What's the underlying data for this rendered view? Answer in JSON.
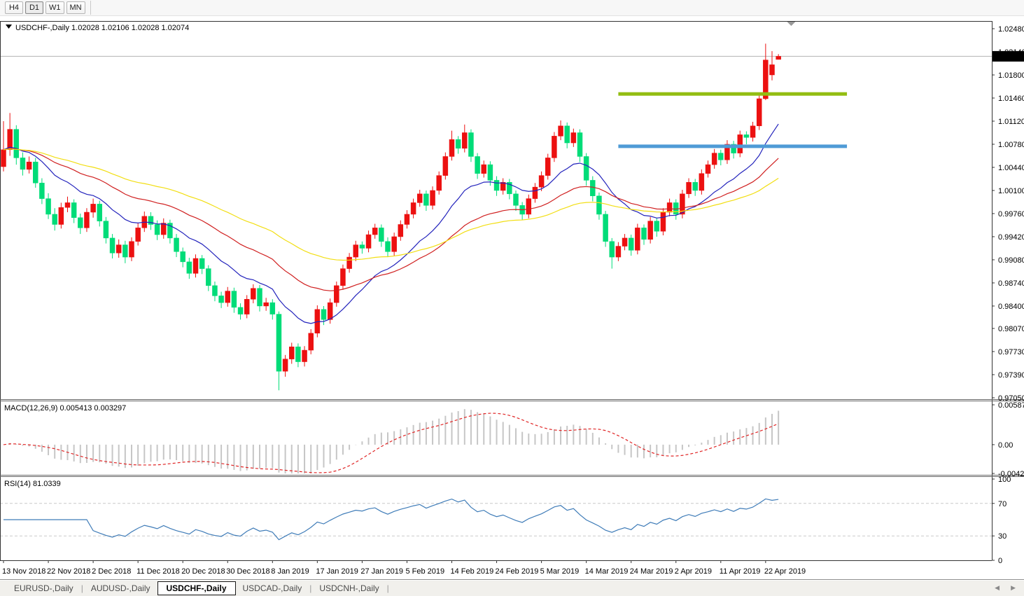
{
  "toolbar": {
    "timeframes": [
      {
        "label": "H4",
        "active": false
      },
      {
        "label": "D1",
        "active": true
      },
      {
        "label": "W1",
        "active": false
      },
      {
        "label": "MN",
        "active": false
      }
    ]
  },
  "bottom_tabs": {
    "tabs": [
      {
        "label": "EURUSD-,Daily",
        "active": false
      },
      {
        "label": "AUDUSD-,Daily",
        "active": false
      },
      {
        "label": "USDCHF-,Daily",
        "active": true
      },
      {
        "label": "USDCAD-,Daily",
        "active": false
      },
      {
        "label": "USDCNH-,Daily",
        "active": false
      }
    ],
    "scroll_left_icon": "◀",
    "scroll_right_icon": "▶"
  },
  "chart_data": {
    "type": "candlestick",
    "symbol": "USDCHF-,Daily",
    "title_values": "1.02028 1.02106 1.02028 1.02074",
    "title_ohlc": {
      "open": "1.02028",
      "high": "1.02106",
      "low": "1.02028",
      "close": "1.02074"
    },
    "x_axis": {
      "tick_bar_indices": [
        0,
        7,
        14,
        21,
        28,
        35,
        42,
        49,
        56,
        63,
        70,
        77,
        84,
        91,
        98,
        105,
        112,
        119
      ],
      "tick_labels": [
        "13 Nov 2018",
        "22 Nov 2018",
        "2 Dec 2018",
        "11 Dec 2018",
        "20 Dec 2018",
        "30 Dec 2018",
        "8 Jan 2019",
        "17 Jan 2019",
        "27 Jan 2019",
        "5 Feb 2019",
        "14 Feb 2019",
        "24 Feb 2019",
        "5 Mar 2019",
        "14 Mar 2019",
        "24 Mar 2019",
        "2 Apr 2019",
        "11 Apr 2019",
        "22 Apr 2019"
      ]
    },
    "price_axis": {
      "ylim": [
        0.97029,
        1.02583
      ],
      "tick_labels": [
        "1.02480",
        "1.02140",
        "1.01800",
        "1.01460",
        "1.01120",
        "1.00780",
        "1.00440",
        "1.00100",
        "0.99760",
        "0.99420",
        "0.99080",
        "0.98740",
        "0.98400",
        "0.98070",
        "0.97730",
        "0.97390",
        "0.97050"
      ],
      "current_price_label": "1.02074",
      "current_price": 1.02074
    },
    "colors": {
      "bull": "#ec1010",
      "bear": "#00dc78",
      "bid_line": "#b3b3b3",
      "bid_tag_bg": "#000000",
      "bid_tag_text": "#ffffff",
      "border": "#333333",
      "splitter": "#666666",
      "shift_marker": "#999999"
    },
    "moving_averages": [
      {
        "name": "ma-fast-blue",
        "type": "ema",
        "period": 15,
        "color": "#2323bc"
      },
      {
        "name": "ma-mid-red",
        "type": "ema",
        "period": 34,
        "color": "#d02020"
      },
      {
        "name": "ma-slow-yellow",
        "type": "ema",
        "period": 60,
        "color": "#f2de12"
      }
    ],
    "hlines": [
      {
        "name": "resistance-line-upper",
        "color": "#93bd12",
        "price": 1.0152,
        "x1_bar": 96,
        "x2_bar": 131.7,
        "width": 5
      },
      {
        "name": "resistance-line-lower",
        "color": "#4f9bd6",
        "price": 1.0075,
        "x1_bar": 96,
        "x2_bar": 131.7,
        "width": 5
      }
    ],
    "shift_marker_bar": 123,
    "candles": [
      [
        1.0045,
        1.0112,
        1.0038,
        1.007
      ],
      [
        1.007,
        1.0124,
        1.0061,
        1.01
      ],
      [
        1.01,
        1.0106,
        1.0048,
        1.0058
      ],
      [
        1.0058,
        1.0066,
        1.0032,
        1.0041
      ],
      [
        1.0041,
        1.006,
        1.0035,
        1.0052
      ],
      [
        1.0052,
        1.0058,
        1.0014,
        1.0021
      ],
      [
        1.0021,
        1.0028,
        0.999,
        0.9998
      ],
      [
        0.9998,
        1.0006,
        0.9968,
        0.9975
      ],
      [
        0.9975,
        0.9984,
        0.9951,
        0.996
      ],
      [
        0.996,
        0.9992,
        0.9954,
        0.9985
      ],
      [
        0.9985,
        1.0001,
        0.9978,
        0.9992
      ],
      [
        0.9992,
        0.9997,
        0.9962,
        0.997
      ],
      [
        0.997,
        0.9976,
        0.9946,
        0.9955
      ],
      [
        0.9955,
        0.9984,
        0.9949,
        0.9978
      ],
      [
        0.9978,
        0.9998,
        0.997,
        0.999
      ],
      [
        0.999,
        0.9995,
        0.9957,
        0.9965
      ],
      [
        0.9965,
        0.9971,
        0.9932,
        0.994
      ],
      [
        0.994,
        0.9946,
        0.991,
        0.9918
      ],
      [
        0.9918,
        0.9938,
        0.9911,
        0.993
      ],
      [
        0.993,
        0.9936,
        0.9903,
        0.9912
      ],
      [
        0.9912,
        0.9941,
        0.9906,
        0.9935
      ],
      [
        0.9935,
        0.9962,
        0.9929,
        0.9955
      ],
      [
        0.9955,
        0.9979,
        0.9949,
        0.9972
      ],
      [
        0.9972,
        0.9978,
        0.9952,
        0.996
      ],
      [
        0.996,
        0.9966,
        0.9937,
        0.9945
      ],
      [
        0.9945,
        0.9969,
        0.9939,
        0.9962
      ],
      [
        0.9962,
        0.9967,
        0.9932,
        0.994
      ],
      [
        0.994,
        0.9946,
        0.9912,
        0.992
      ],
      [
        0.992,
        0.9926,
        0.9897,
        0.9905
      ],
      [
        0.9905,
        0.9911,
        0.988,
        0.9888
      ],
      [
        0.9888,
        0.9916,
        0.9882,
        0.991
      ],
      [
        0.991,
        0.9915,
        0.9887,
        0.9895
      ],
      [
        0.9895,
        0.99,
        0.9862,
        0.987
      ],
      [
        0.987,
        0.9876,
        0.9847,
        0.9855
      ],
      [
        0.9855,
        0.9861,
        0.9837,
        0.9845
      ],
      [
        0.9845,
        0.9868,
        0.9839,
        0.9862
      ],
      [
        0.9862,
        0.9867,
        0.983,
        0.9838
      ],
      [
        0.9838,
        0.9844,
        0.982,
        0.9828
      ],
      [
        0.9828,
        0.9856,
        0.9822,
        0.985
      ],
      [
        0.985,
        0.9872,
        0.9844,
        0.9866
      ],
      [
        0.9866,
        0.9871,
        0.9832,
        0.984
      ],
      [
        0.984,
        0.9852,
        0.9833,
        0.9845
      ],
      [
        0.9845,
        0.985,
        0.982,
        0.9828
      ],
      [
        0.9828,
        0.9832,
        0.9716,
        0.9744
      ],
      [
        0.9744,
        0.9768,
        0.9736,
        0.9762
      ],
      [
        0.9762,
        0.9786,
        0.9755,
        0.978
      ],
      [
        0.978,
        0.9785,
        0.975,
        0.9758
      ],
      [
        0.9758,
        0.9781,
        0.9751,
        0.9775
      ],
      [
        0.9775,
        0.9806,
        0.9769,
        0.98
      ],
      [
        0.98,
        0.9841,
        0.9794,
        0.9835
      ],
      [
        0.9835,
        0.984,
        0.9812,
        0.982
      ],
      [
        0.982,
        0.9851,
        0.9814,
        0.9845
      ],
      [
        0.9845,
        0.9876,
        0.9839,
        0.987
      ],
      [
        0.987,
        0.9901,
        0.9864,
        0.9895
      ],
      [
        0.9895,
        0.9918,
        0.9889,
        0.9912
      ],
      [
        0.9912,
        0.9936,
        0.9906,
        0.993
      ],
      [
        0.993,
        0.9935,
        0.9917,
        0.9925
      ],
      [
        0.9925,
        0.9951,
        0.9919,
        0.9945
      ],
      [
        0.9945,
        0.9961,
        0.9939,
        0.9955
      ],
      [
        0.9955,
        0.996,
        0.9927,
        0.9935
      ],
      [
        0.9935,
        0.9941,
        0.9912,
        0.992
      ],
      [
        0.992,
        0.9948,
        0.9914,
        0.9942
      ],
      [
        0.9942,
        0.9966,
        0.9936,
        0.996
      ],
      [
        0.996,
        0.9981,
        0.9954,
        0.9975
      ],
      [
        0.9975,
        0.9998,
        0.9969,
        0.9992
      ],
      [
        0.9992,
        1.0011,
        0.9986,
        1.0005
      ],
      [
        1.0005,
        1.001,
        0.998,
        0.9988
      ],
      [
        0.9988,
        1.0016,
        0.9982,
        1.001
      ],
      [
        1.001,
        1.0038,
        1.0004,
        1.0032
      ],
      [
        1.0032,
        1.0066,
        1.0026,
        1.006
      ],
      [
        1.006,
        1.0098,
        1.0054,
        1.0085
      ],
      [
        1.0085,
        1.009,
        1.0064,
        1.0072
      ],
      [
        1.0072,
        1.0107,
        1.0066,
        1.0095
      ],
      [
        1.0095,
        1.01,
        1.0052,
        1.006
      ],
      [
        1.006,
        1.0065,
        1.0027,
        1.0035
      ],
      [
        1.0035,
        1.0054,
        1.0029,
        1.0048
      ],
      [
        1.0048,
        1.0053,
        1.0017,
        1.0025
      ],
      [
        1.0025,
        1.0031,
        1.0002,
        1.001
      ],
      [
        1.001,
        1.0028,
        1.0004,
        1.0022
      ],
      [
        1.0022,
        1.0027,
        0.9997,
        1.0005
      ],
      [
        1.0005,
        1.001,
        0.998,
        0.9988
      ],
      [
        0.9988,
        0.9993,
        0.9967,
        0.9975
      ],
      [
        0.9975,
        1.0004,
        0.9969,
        0.9998
      ],
      [
        0.9998,
        1.0021,
        0.9992,
        1.0015
      ],
      [
        1.0015,
        1.0038,
        1.0009,
        1.0032
      ],
      [
        1.0032,
        1.0064,
        1.0026,
        1.0058
      ],
      [
        1.0058,
        1.0096,
        1.0052,
        1.009
      ],
      [
        1.009,
        1.0113,
        1.0084,
        1.0105
      ],
      [
        1.0105,
        1.011,
        1.0072,
        1.008
      ],
      [
        1.008,
        1.0101,
        1.0074,
        1.0095
      ],
      [
        1.0095,
        1.01,
        1.0052,
        1.006
      ],
      [
        1.006,
        1.0065,
        1.0017,
        1.0025
      ],
      [
        1.0025,
        1.0031,
        0.9994,
        1.0002
      ],
      [
        1.0002,
        1.0007,
        0.9967,
        0.9975
      ],
      [
        0.9975,
        0.998,
        0.9927,
        0.9935
      ],
      [
        0.9935,
        0.994,
        0.9895,
        0.9912
      ],
      [
        0.9912,
        0.9934,
        0.9906,
        0.9928
      ],
      [
        0.9928,
        0.9946,
        0.9922,
        0.994
      ],
      [
        0.994,
        0.9945,
        0.9914,
        0.9922
      ],
      [
        0.9922,
        0.9961,
        0.9916,
        0.9955
      ],
      [
        0.9955,
        0.996,
        0.993,
        0.9938
      ],
      [
        0.9938,
        0.9971,
        0.9932,
        0.9965
      ],
      [
        0.9965,
        0.997,
        0.9942,
        0.995
      ],
      [
        0.995,
        0.9984,
        0.9944,
        0.9978
      ],
      [
        0.9978,
        0.9998,
        0.9972,
        0.9992
      ],
      [
        0.9992,
        0.9997,
        0.9967,
        0.9975
      ],
      [
        0.9975,
        1.0011,
        0.9969,
        1.0005
      ],
      [
        1.0005,
        1.0028,
        0.9999,
        1.0022
      ],
      [
        1.0022,
        1.0027,
        1.0002,
        1.001
      ],
      [
        1.001,
        1.0041,
        1.0004,
        1.0035
      ],
      [
        1.0035,
        1.0054,
        1.0029,
        1.0048
      ],
      [
        1.0048,
        1.0071,
        1.0042,
        1.0065
      ],
      [
        1.0065,
        1.007,
        1.0047,
        1.0055
      ],
      [
        1.0055,
        1.0084,
        1.0049,
        1.0078
      ],
      [
        1.0078,
        1.0083,
        1.0057,
        1.0065
      ],
      [
        1.0065,
        1.0098,
        1.0059,
        1.0092
      ],
      [
        1.0092,
        1.0097,
        1.0078,
        1.0088
      ],
      [
        1.0088,
        1.0111,
        1.0082,
        1.0105
      ],
      [
        1.0105,
        1.0151,
        1.0099,
        1.0145
      ],
      [
        1.0145,
        1.0226,
        1.0143,
        1.0202
      ],
      [
        1.018,
        1.0215,
        1.0172,
        1.0195
      ],
      [
        1.02028,
        1.02106,
        1.02028,
        1.02074
      ]
    ],
    "macd": {
      "label": "MACD(12,26,9)",
      "value_main": "0.005413",
      "value_signal": "0.003297",
      "fast": 12,
      "slow": 26,
      "signal": 9,
      "ylim": [
        -0.004238,
        0.005873
      ],
      "tick_labels": [
        "0.005873",
        "0.00",
        "-0.004238"
      ],
      "hist_color": "#c6c6c6",
      "signal_color": "#e02525"
    },
    "rsi": {
      "label": "RSI(14)",
      "value": "81.0339",
      "period": 14,
      "levels": [
        70,
        30
      ],
      "ylim": [
        0,
        100
      ],
      "tick_labels": [
        "100",
        "70",
        "30",
        "0"
      ],
      "line_color": "#3f7cb8",
      "level_color": "#c9c9c9"
    }
  }
}
